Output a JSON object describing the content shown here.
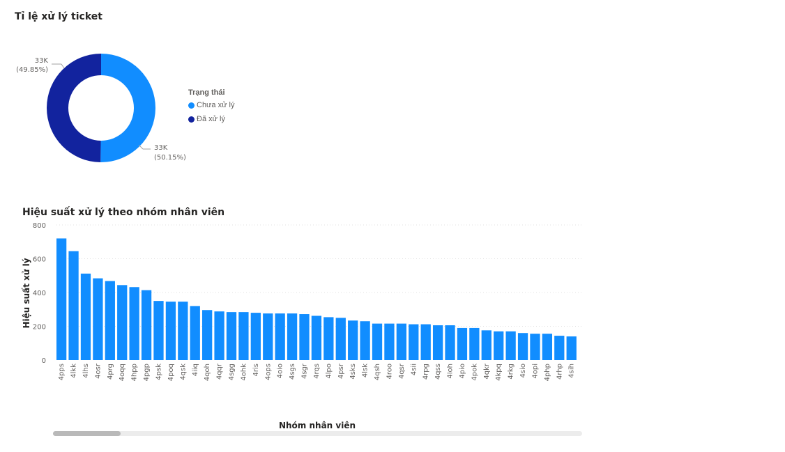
{
  "donut": {
    "title": "Tỉ lệ xử lý ticket",
    "legend_title": "Trạng thái",
    "colors": {
      "chua": "#118dff",
      "da": "#12239e"
    },
    "labels": {
      "chua_value": "33K",
      "chua_pct": "(50.15%)",
      "da_value": "33K",
      "da_pct": "(49.85%)"
    }
  },
  "bar": {
    "title": "Hiệu suất xử lý theo nhóm nhân viên",
    "color": "#118dff"
  },
  "chart_data": [
    {
      "type": "pie",
      "title": "Tỉ lệ xử lý ticket",
      "legend_title": "Trạng thái",
      "legend_position": "right",
      "categories": [
        "Chưa xử lý",
        "Đã xử lý"
      ],
      "values": [
        50.15,
        49.85
      ],
      "display_values": [
        "33K",
        "33K"
      ]
    },
    {
      "type": "bar",
      "title": "Hiệu suất xử lý theo nhóm nhân viên",
      "xlabel": "Nhóm nhân viên",
      "ylabel": "Hiệu suất xử lý",
      "ylim": [
        0,
        800
      ],
      "yticks": [
        0,
        200,
        400,
        600,
        800
      ],
      "grid": true,
      "categories": [
        "4pps",
        "4lkk",
        "4lhs",
        "4osr",
        "4prg",
        "4oqq",
        "4hpp",
        "4pgp",
        "4psk",
        "4poq",
        "4qsk",
        "4iiq",
        "4qoh",
        "4qqr",
        "4sgg",
        "4ohk",
        "4ris",
        "4ops",
        "4oio",
        "4sgs",
        "4sgr",
        "4rqs",
        "4lpo",
        "4psr",
        "4sks",
        "4lsk",
        "4qsh",
        "4roo",
        "4qsr",
        "4sii",
        "4rpg",
        "4qss",
        "4ioh",
        "4pio",
        "4pok",
        "4qkr",
        "4kpq",
        "4rkg",
        "4sio",
        "4opi",
        "4php",
        "4rhp",
        "4sih"
      ],
      "values": [
        720,
        645,
        512,
        484,
        468,
        444,
        432,
        414,
        350,
        346,
        346,
        320,
        296,
        288,
        284,
        284,
        280,
        276,
        276,
        276,
        272,
        262,
        254,
        250,
        234,
        230,
        216,
        216,
        216,
        212,
        212,
        206,
        206,
        190,
        190,
        176,
        170,
        170,
        160,
        156,
        156,
        144,
        140
      ]
    }
  ]
}
